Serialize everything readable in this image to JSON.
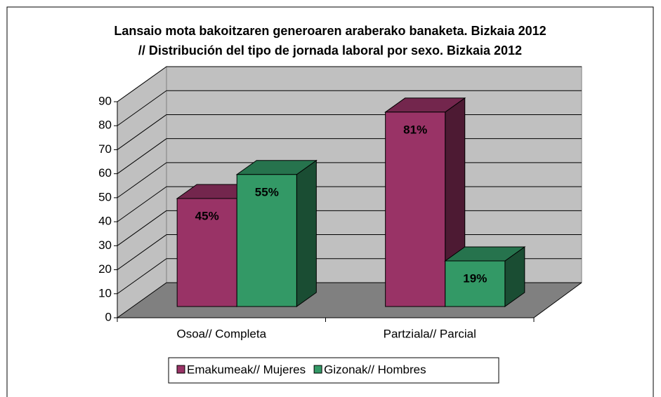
{
  "chart_data": {
    "type": "bar3d",
    "title": "Lansaio mota bakoitzaren generoaren araberako banaketa. Bizkaia 2012",
    "subtitle": "// Distribución del tipo de jornada laboral por sexo. Bizkaia 2012",
    "categories": [
      "Osoa// Completa",
      "Partziala// Parcial"
    ],
    "series": [
      {
        "name": "Emakumeak// Mujeres",
        "color": "#993366",
        "values": [
          45,
          81
        ],
        "value_labels": [
          "45%",
          "81%"
        ]
      },
      {
        "name": "Gizonak// Hombres",
        "color": "#339966",
        "values": [
          55,
          19
        ],
        "value_labels": [
          "55%",
          "19%"
        ]
      }
    ],
    "ylim": [
      0,
      90
    ],
    "yticks": [
      0,
      10,
      20,
      30,
      40,
      50,
      60,
      70,
      80,
      90
    ],
    "grid": true,
    "legend": "bottom"
  }
}
